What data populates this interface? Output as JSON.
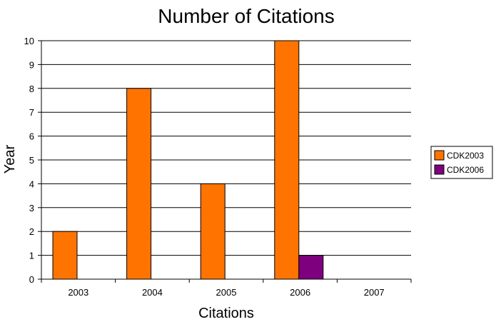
{
  "chart_data": {
    "type": "bar",
    "title": "Number of Citations",
    "xlabel": "Citations",
    "ylabel": "Year",
    "categories": [
      "2003",
      "2004",
      "2005",
      "2006",
      "2007"
    ],
    "ylim": [
      0,
      10
    ],
    "yticks": [
      0,
      1,
      2,
      3,
      4,
      5,
      6,
      7,
      8,
      9,
      10
    ],
    "grid": true,
    "legend_position": "right",
    "series": [
      {
        "name": "CDK2003",
        "color": "#ff7300",
        "values": [
          2,
          8,
          4,
          10,
          0
        ]
      },
      {
        "name": "CDK2006",
        "color": "#7f007f",
        "values": [
          0,
          0,
          0,
          1,
          0
        ]
      }
    ]
  }
}
